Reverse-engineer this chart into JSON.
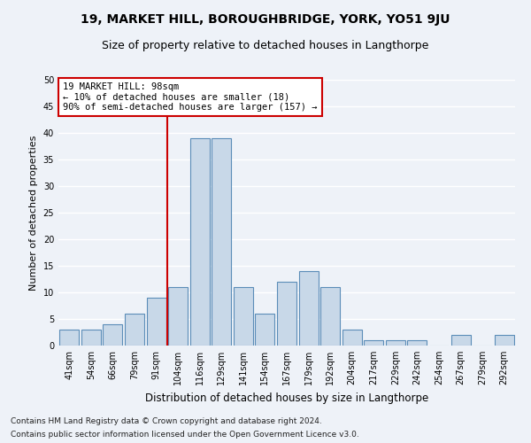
{
  "title1": "19, MARKET HILL, BOROUGHBRIDGE, YORK, YO51 9JU",
  "title2": "Size of property relative to detached houses in Langthorpe",
  "xlabel": "Distribution of detached houses by size in Langthorpe",
  "ylabel": "Number of detached properties",
  "categories": [
    "41sqm",
    "54sqm",
    "66sqm",
    "79sqm",
    "91sqm",
    "104sqm",
    "116sqm",
    "129sqm",
    "141sqm",
    "154sqm",
    "167sqm",
    "179sqm",
    "192sqm",
    "204sqm",
    "217sqm",
    "229sqm",
    "242sqm",
    "254sqm",
    "267sqm",
    "279sqm",
    "292sqm"
  ],
  "values": [
    3,
    3,
    4,
    6,
    9,
    11,
    39,
    39,
    11,
    6,
    12,
    14,
    11,
    3,
    1,
    1,
    1,
    0,
    2,
    0,
    2
  ],
  "bar_color": "#c8d8e8",
  "bar_edge_color": "#5b8db8",
  "bar_edge_width": 0.8,
  "vline_x": 5.0,
  "vline_color": "#cc0000",
  "annotation_text": "19 MARKET HILL: 98sqm\n← 10% of detached houses are smaller (18)\n90% of semi-detached houses are larger (157) →",
  "annotation_box_color": "#ffffff",
  "annotation_box_edge_color": "#cc0000",
  "ylim": [
    0,
    50
  ],
  "yticks": [
    0,
    5,
    10,
    15,
    20,
    25,
    30,
    35,
    40,
    45,
    50
  ],
  "footnote1": "Contains HM Land Registry data © Crown copyright and database right 2024.",
  "footnote2": "Contains public sector information licensed under the Open Government Licence v3.0.",
  "bg_color": "#eef2f8",
  "plot_bg_color": "#eef2f8",
  "grid_color": "#ffffff",
  "title1_fontsize": 10,
  "title2_fontsize": 9,
  "xlabel_fontsize": 8.5,
  "ylabel_fontsize": 8,
  "tick_fontsize": 7,
  "annotation_fontsize": 7.5,
  "footnote_fontsize": 6.5
}
